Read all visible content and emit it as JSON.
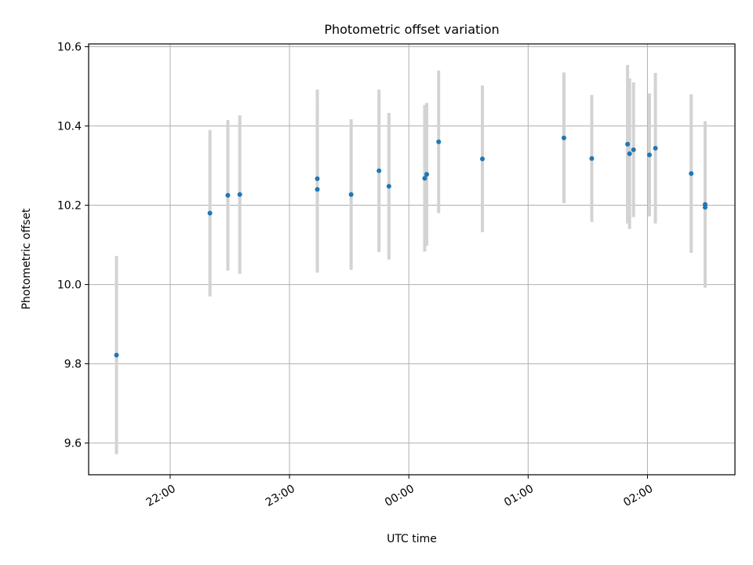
{
  "chart_data": {
    "type": "scatter",
    "title": "Photometric offset variation",
    "xlabel": "UTC time",
    "ylabel": "Photometric offset",
    "x_is_time": true,
    "xlim": [
      "21:19",
      "02:44"
    ],
    "ylim": [
      9.52,
      10.607
    ],
    "xticks": [
      "22:00",
      "23:00",
      "00:00",
      "01:00",
      "02:00"
    ],
    "yticks": [
      9.6,
      9.8,
      10.0,
      10.2,
      10.4,
      10.6
    ],
    "grid": true,
    "colors": {
      "point": "#1f77b4",
      "errorbar": "#d3d3d3",
      "grid": "#b0b0b0"
    },
    "points": [
      {
        "t": "21:33",
        "y": 9.822,
        "err": 0.25
      },
      {
        "t": "22:20",
        "y": 10.18,
        "err": 0.21
      },
      {
        "t": "22:29",
        "y": 10.225,
        "err": 0.19
      },
      {
        "t": "22:35",
        "y": 10.227,
        "err": 0.2
      },
      {
        "t": "23:14",
        "y": 10.267,
        "err": 0.225
      },
      {
        "t": "23:14",
        "y": 10.24,
        "err": 0.21
      },
      {
        "t": "23:31",
        "y": 10.227,
        "err": 0.19
      },
      {
        "t": "23:45",
        "y": 10.287,
        "err": 0.205
      },
      {
        "t": "23:50",
        "y": 10.248,
        "err": 0.185
      },
      {
        "t": "00:08",
        "y": 10.268,
        "err": 0.185
      },
      {
        "t": "00:09",
        "y": 10.278,
        "err": 0.18
      },
      {
        "t": "00:15",
        "y": 10.36,
        "err": 0.18
      },
      {
        "t": "00:37",
        "y": 10.317,
        "err": 0.185
      },
      {
        "t": "01:18",
        "y": 10.37,
        "err": 0.165
      },
      {
        "t": "01:32",
        "y": 10.318,
        "err": 0.16
      },
      {
        "t": "01:50",
        "y": 10.354,
        "err": 0.2
      },
      {
        "t": "01:51",
        "y": 10.33,
        "err": 0.19
      },
      {
        "t": "01:53",
        "y": 10.34,
        "err": 0.17
      },
      {
        "t": "02:01",
        "y": 10.327,
        "err": 0.155
      },
      {
        "t": "02:04",
        "y": 10.344,
        "err": 0.19
      },
      {
        "t": "02:22",
        "y": 10.28,
        "err": 0.2
      },
      {
        "t": "02:29",
        "y": 10.202,
        "err": 0.21
      },
      {
        "t": "02:29",
        "y": 10.195,
        "err": 0.2
      }
    ]
  }
}
